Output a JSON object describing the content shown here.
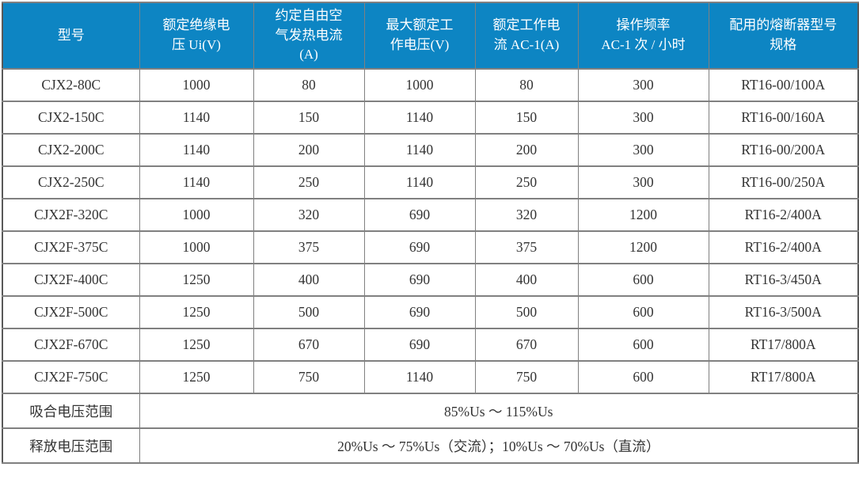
{
  "table": {
    "headers": [
      "型号",
      "额定绝缘电\n压 Ui(V)",
      "约定自由空\n气发热电流\n(A)",
      "最大额定工\n作电压(V)",
      "额定工作电\n流 AC-1(A)",
      "操作频率\nAC-1 次 / 小时",
      "配用的熔断器型号\n规格"
    ],
    "rows": [
      [
        "CJX2-80C",
        "1000",
        "80",
        "1000",
        "80",
        "300",
        "RT16-00/100A"
      ],
      [
        "CJX2-150C",
        "1140",
        "150",
        "1140",
        "150",
        "300",
        "RT16-00/160A"
      ],
      [
        "CJX2-200C",
        "1140",
        "200",
        "1140",
        "200",
        "300",
        "RT16-00/200A"
      ],
      [
        "CJX2-250C",
        "1140",
        "250",
        "1140",
        "250",
        "300",
        "RT16-00/250A"
      ],
      [
        "CJX2F-320C",
        "1000",
        "320",
        "690",
        "320",
        "1200",
        "RT16-2/400A"
      ],
      [
        "CJX2F-375C",
        "1000",
        "375",
        "690",
        "375",
        "1200",
        "RT16-2/400A"
      ],
      [
        "CJX2F-400C",
        "1250",
        "400",
        "690",
        "400",
        "600",
        "RT16-3/450A"
      ],
      [
        "CJX2F-500C",
        "1250",
        "500",
        "690",
        "500",
        "600",
        "RT16-3/500A"
      ],
      [
        "CJX2F-670C",
        "1250",
        "670",
        "690",
        "670",
        "600",
        "RT17/800A"
      ],
      [
        "CJX2F-750C",
        "1250",
        "750",
        "1140",
        "750",
        "600",
        "RT17/800A"
      ]
    ],
    "footer_rows": [
      {
        "label": "吸合电压范围",
        "value": "85%Us ～ 115%Us"
      },
      {
        "label": "释放电压范围",
        "value": "20%Us ～ 75%Us（交流）；10%Us ～ 70%Us（直流）"
      }
    ]
  },
  "colors": {
    "header_bg": "#0d85c3",
    "header_text": "#ffffff",
    "body_text": "#333333",
    "border": "#808080",
    "outer_border": "#595959"
  }
}
